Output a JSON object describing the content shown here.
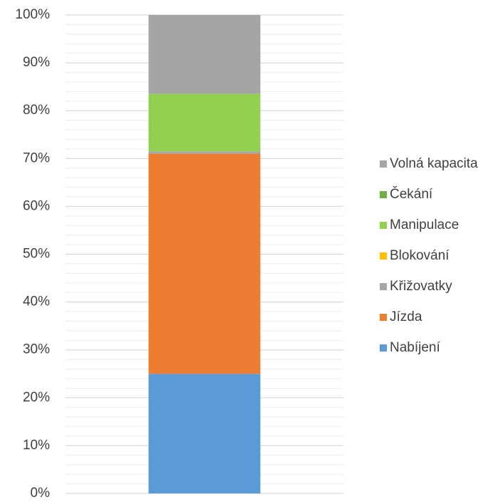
{
  "chart_data": {
    "type": "stacked_bar",
    "categories": [
      null
    ],
    "series": [
      {
        "name": "Nabíjení",
        "color": "#5b9bd5",
        "values": [
          25
        ]
      },
      {
        "name": "Jízda",
        "color": "#ed7d31",
        "values": [
          46
        ]
      },
      {
        "name": "Křižovatky",
        "color": "#a5a5a5",
        "values": [
          0.5
        ]
      },
      {
        "name": "Blokování",
        "color": "#ffc000",
        "values": [
          0
        ]
      },
      {
        "name": "Manipulace",
        "color": "#92d050",
        "values": [
          12
        ]
      },
      {
        "name": "Čekání",
        "color": "#70ad47",
        "values": [
          0
        ]
      },
      {
        "name": "Volná kapacita",
        "color": "#a5a5a5",
        "values": [
          16.5
        ]
      }
    ],
    "ylim": [
      0,
      100
    ],
    "yticks": [
      {
        "value": 0,
        "label": "0%"
      },
      {
        "value": 10,
        "label": "10%"
      },
      {
        "value": 20,
        "label": "20%"
      },
      {
        "value": 30,
        "label": "30%"
      },
      {
        "value": 40,
        "label": "40%"
      },
      {
        "value": 50,
        "label": "50%"
      },
      {
        "value": 60,
        "label": "60%"
      },
      {
        "value": 70,
        "label": "70%"
      },
      {
        "value": 80,
        "label": "80%"
      },
      {
        "value": 90,
        "label": "90%"
      },
      {
        "value": 100,
        "label": "100%"
      }
    ],
    "grid": true,
    "legend": "right"
  }
}
